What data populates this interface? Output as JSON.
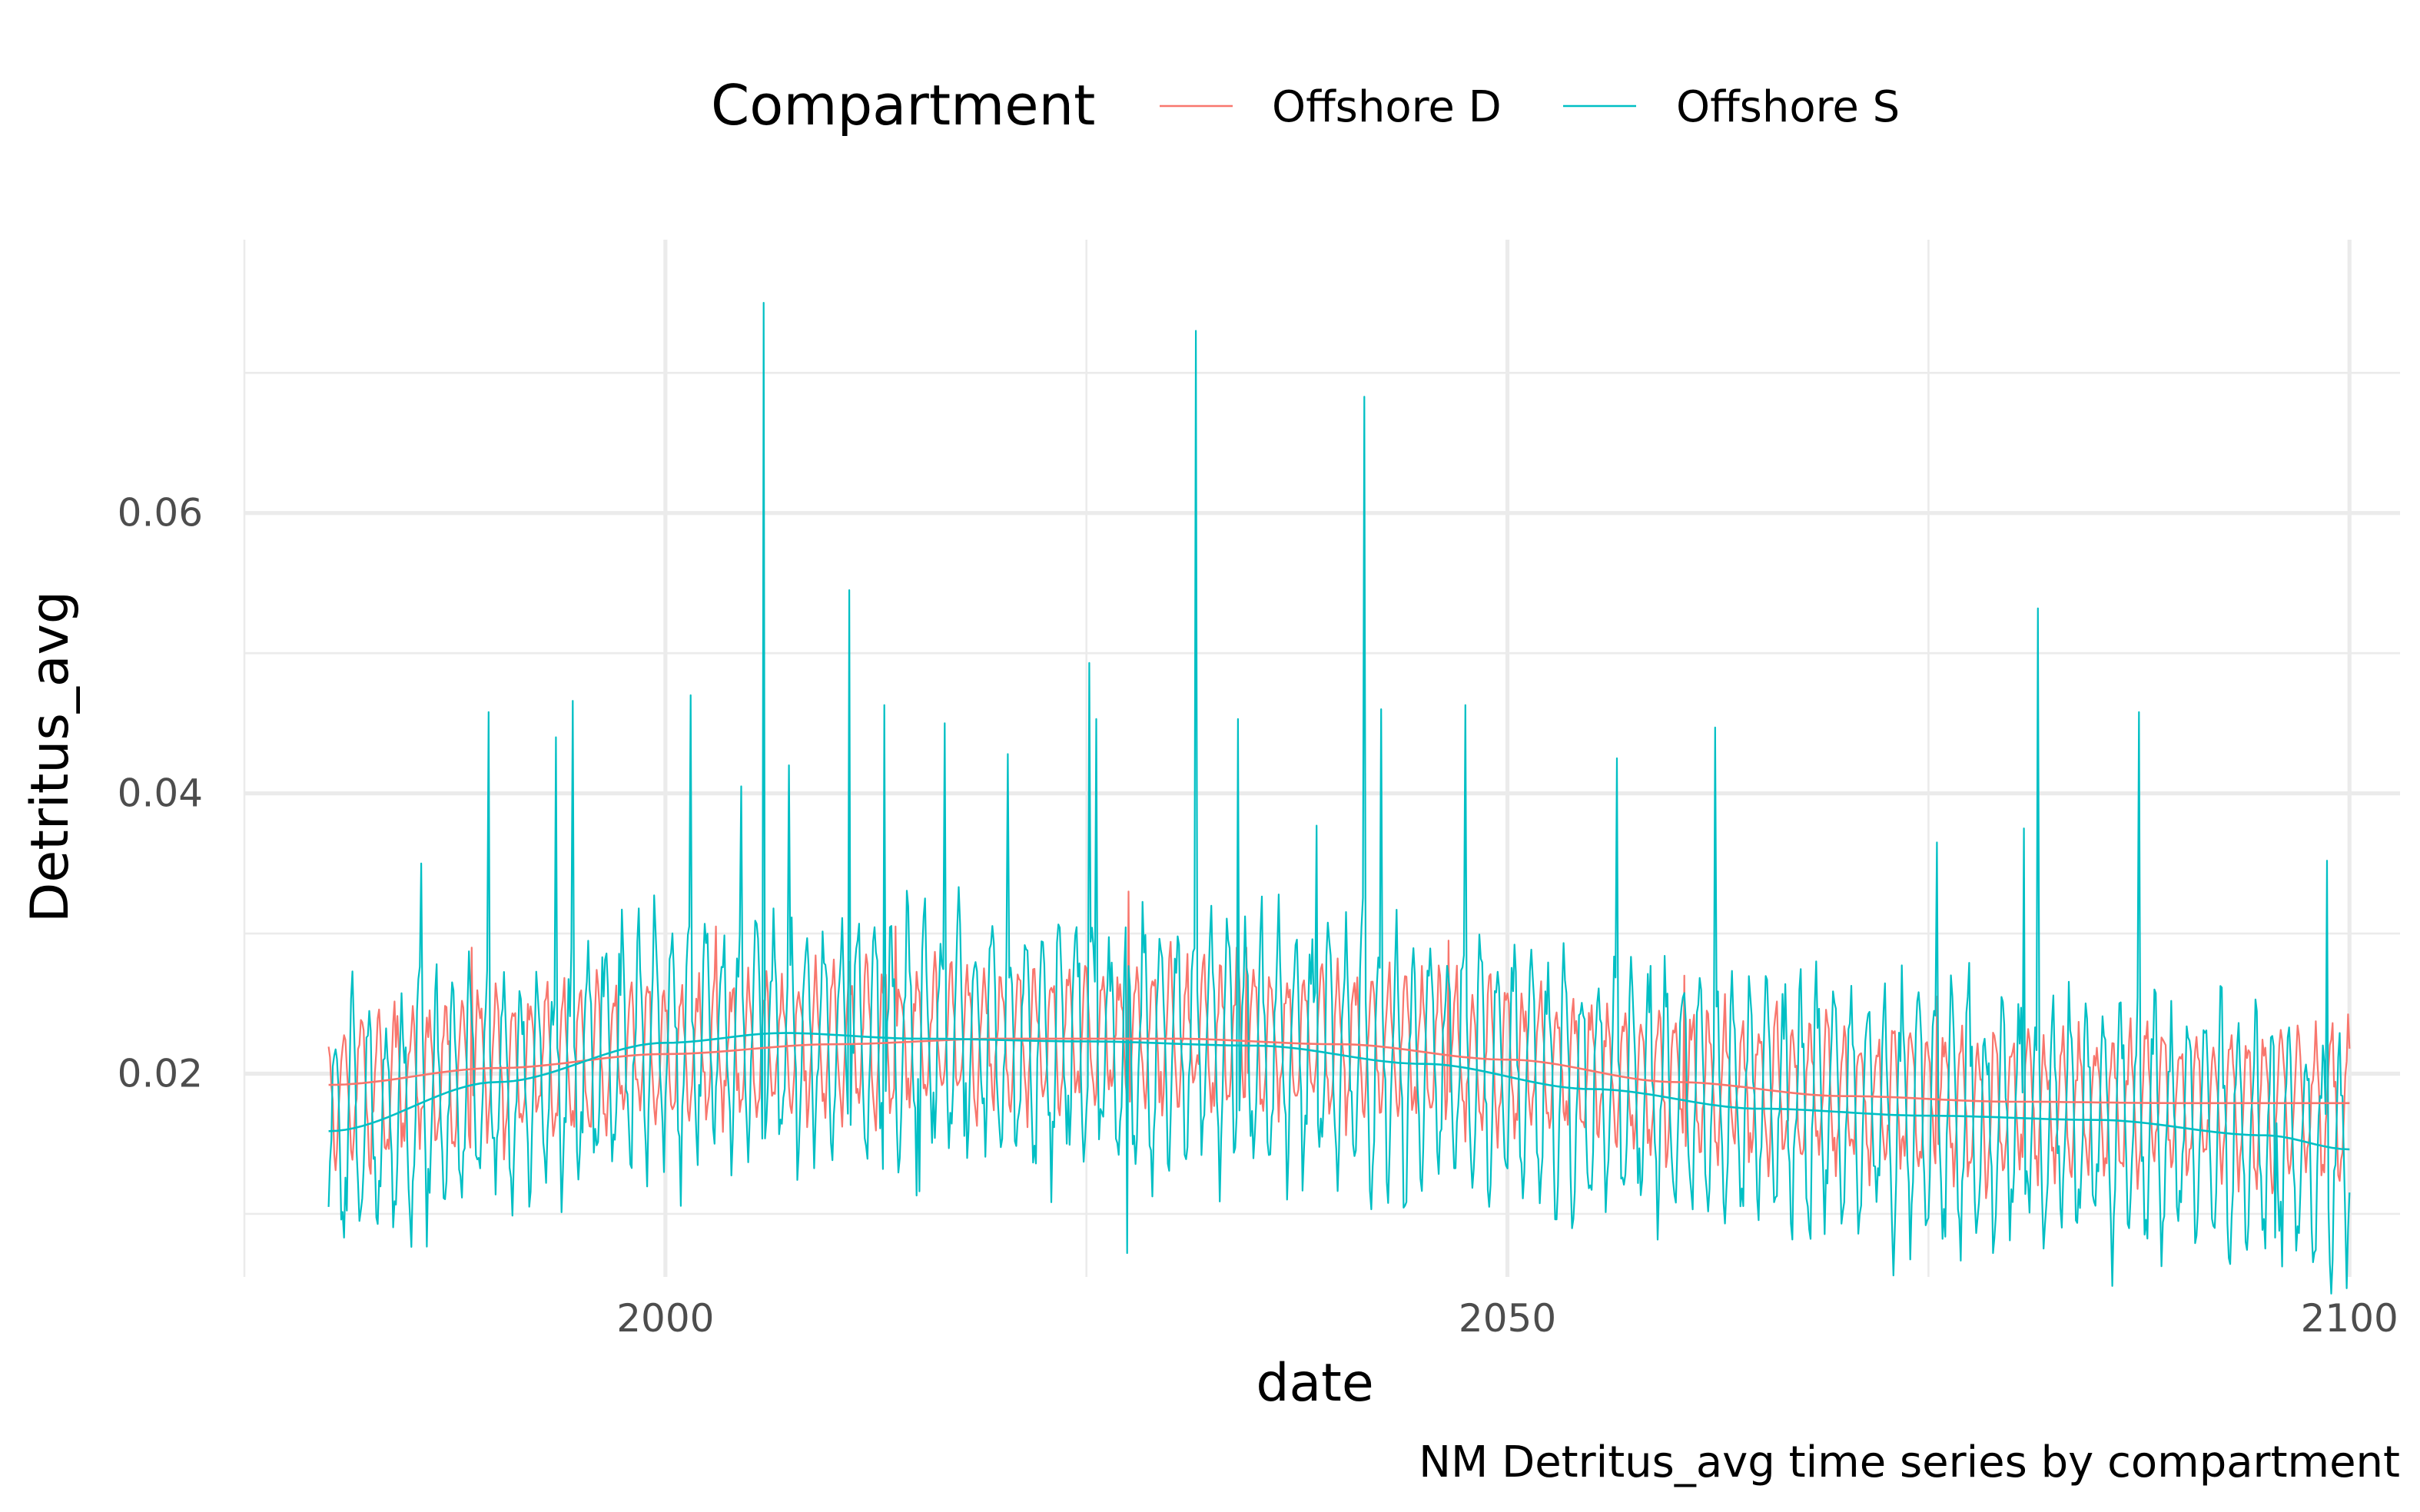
{
  "chart_data": {
    "type": "line",
    "title": "",
    "caption": "NM Detritus_avg time series by compartment",
    "xlabel": "date",
    "ylabel": "Detritus_avg",
    "xlim": [
      1975,
      2103
    ],
    "ylim": [
      0.0055,
      0.0795
    ],
    "x_ticks": [
      2000,
      2050,
      2100
    ],
    "x_tick_labels": [
      "2000",
      "2050",
      "2100"
    ],
    "x_minor_ticks": [
      1975,
      2025,
      2075
    ],
    "y_ticks": [
      0.02,
      0.04,
      0.06
    ],
    "y_tick_labels": [
      "0.02",
      "0.04",
      "0.06"
    ],
    "y_minor_ticks": [
      0.01,
      0.03,
      0.05,
      0.07
    ],
    "grid": true,
    "legend": {
      "title": "Compartment",
      "position": "top",
      "entries": [
        "Offshore D",
        "Offshore S"
      ]
    },
    "colors": {
      "Offshore D": "#F8766D",
      "Offshore S": "#00BFC4"
    },
    "x_start": 1980,
    "x_end": 2100,
    "series": [
      {
        "name": "Offshore D",
        "color": "#F8766D",
        "kind": "monthly-seasonal",
        "trend": [
          [
            1980,
            0.0192
          ],
          [
            1990,
            0.0205
          ],
          [
            2000,
            0.0215
          ],
          [
            2010,
            0.0222
          ],
          [
            2020,
            0.0226
          ],
          [
            2030,
            0.0226
          ],
          [
            2040,
            0.0222
          ],
          [
            2050,
            0.021
          ],
          [
            2060,
            0.0194
          ],
          [
            2070,
            0.0183
          ],
          [
            2080,
            0.0179
          ],
          [
            2090,
            0.0178
          ],
          [
            2100,
            0.0179
          ]
        ],
        "amplitude": 0.0052,
        "spikes": [
          [
            1988.5,
            0.029
          ],
          [
            2003.0,
            0.0305
          ],
          [
            2013.7,
            0.0305
          ],
          [
            2027.5,
            0.033
          ],
          [
            2034.5,
            0.029
          ],
          [
            2046.5,
            0.0295
          ],
          [
            2060.5,
            0.027
          ],
          [
            2075.5,
            0.0255
          ]
        ]
      },
      {
        "name": "Offshore S",
        "color": "#00BFC4",
        "kind": "monthly-seasonal",
        "trend": [
          [
            1980,
            0.0159
          ],
          [
            1990,
            0.019
          ],
          [
            2000,
            0.0222
          ],
          [
            2007,
            0.0228
          ],
          [
            2015,
            0.0224
          ],
          [
            2025,
            0.0222
          ],
          [
            2035,
            0.022
          ],
          [
            2045,
            0.0208
          ],
          [
            2055,
            0.019
          ],
          [
            2065,
            0.0176
          ],
          [
            2075,
            0.017
          ],
          [
            2085,
            0.0167
          ],
          [
            2095,
            0.0156
          ],
          [
            2100,
            0.0146
          ]
        ],
        "amplitude": 0.0088,
        "spikes": [
          [
            1985.5,
            0.035
          ],
          [
            1989.5,
            0.0458
          ],
          [
            1993.5,
            0.044
          ],
          [
            1994.5,
            0.0466
          ],
          [
            2001.5,
            0.047
          ],
          [
            2004.5,
            0.0405
          ],
          [
            2005.8,
            0.075
          ],
          [
            2007.3,
            0.042
          ],
          [
            2010.9,
            0.0545
          ],
          [
            2013.0,
            0.0463
          ],
          [
            2016.6,
            0.045
          ],
          [
            2020.3,
            0.0428
          ],
          [
            2025.2,
            0.0493
          ],
          [
            2025.6,
            0.0453
          ],
          [
            2031.5,
            0.073
          ],
          [
            2034.0,
            0.0453
          ],
          [
            2038.7,
            0.0377
          ],
          [
            2041.5,
            0.0683
          ],
          [
            2042.5,
            0.046
          ],
          [
            2047.5,
            0.0463
          ],
          [
            2056.5,
            0.0425
          ],
          [
            2062.3,
            0.0447
          ],
          [
            2075.5,
            0.0365
          ],
          [
            2080.7,
            0.0375
          ],
          [
            2081.5,
            0.0532
          ],
          [
            2087.5,
            0.0458
          ],
          [
            2098.7,
            0.0352
          ]
        ],
        "dips": [
          [
            1980.9,
            0.0083
          ],
          [
            2015.1,
            0.0116
          ],
          [
            2027.4,
            0.0072
          ],
          [
            2093.8,
            0.008
          ],
          [
            2095.6,
            0.0083
          ]
        ]
      }
    ],
    "smooth_series": [
      {
        "name": "Offshore D",
        "color": "#F8766D",
        "points": [
          [
            1980,
            0.0192
          ],
          [
            1990,
            0.0204
          ],
          [
            2000,
            0.0214
          ],
          [
            2010,
            0.0221
          ],
          [
            2020,
            0.0225
          ],
          [
            2030,
            0.0225
          ],
          [
            2040,
            0.0221
          ],
          [
            2050,
            0.021
          ],
          [
            2060,
            0.0194
          ],
          [
            2070,
            0.0184
          ],
          [
            2080,
            0.018
          ],
          [
            2090,
            0.0179
          ],
          [
            2100,
            0.0179
          ]
        ]
      },
      {
        "name": "Offshore S",
        "color": "#00BFC4",
        "points": [
          [
            1980,
            0.0159
          ],
          [
            1990,
            0.0194
          ],
          [
            2000,
            0.0222
          ],
          [
            2007,
            0.0229
          ],
          [
            2015,
            0.0225
          ],
          [
            2025,
            0.0223
          ],
          [
            2035,
            0.022
          ],
          [
            2045,
            0.0207
          ],
          [
            2055,
            0.0189
          ],
          [
            2065,
            0.0175
          ],
          [
            2075,
            0.017
          ],
          [
            2085,
            0.0167
          ],
          [
            2095,
            0.0156
          ],
          [
            2100,
            0.0146
          ]
        ]
      }
    ]
  }
}
